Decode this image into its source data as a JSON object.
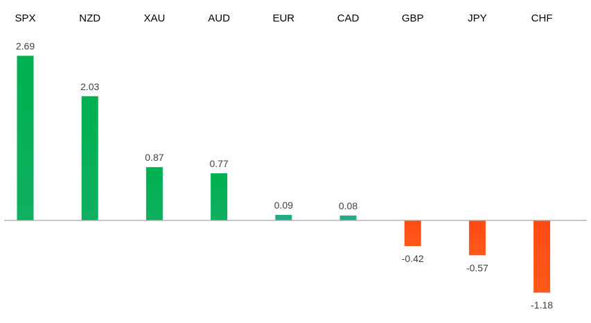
{
  "chart_data": {
    "type": "bar",
    "categories": [
      "SPX",
      "NZD",
      "XAU",
      "AUD",
      "EUR",
      "CAD",
      "GBP",
      "JPY",
      "CHF"
    ],
    "values": [
      2.69,
      2.03,
      0.87,
      0.77,
      0.09,
      0.08,
      -0.42,
      -0.57,
      -1.18
    ],
    "data_labels": [
      "2.69",
      "2.03",
      "0.87",
      "0.77",
      "0.09",
      "0.08",
      "-0.42",
      "-0.57",
      "-1.18"
    ],
    "title": "",
    "xlabel": "",
    "ylabel": "",
    "category_labels_position": "top",
    "grid": false,
    "legend": "none",
    "colors": {
      "positive_top": "#00b050",
      "positive_small": "#2aa894",
      "negative": "#ff4a12",
      "axis": "#a6a6a6"
    }
  }
}
